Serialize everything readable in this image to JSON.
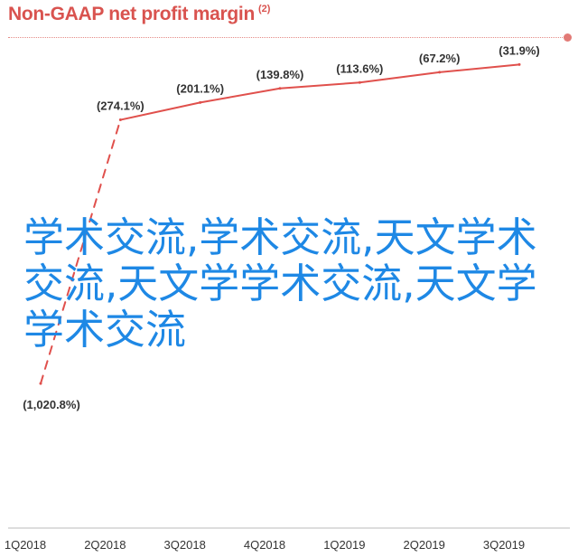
{
  "chart_data": {
    "type": "line",
    "title": "Non-GAAP net profit margin",
    "title_note": "(2)",
    "categories": [
      "1Q2018",
      "2Q2018",
      "3Q2018",
      "4Q2018",
      "1Q2019",
      "2Q2019",
      "3Q2019"
    ],
    "series": [
      {
        "values": [
          -1020.8,
          -274.1,
          -201.1,
          -139.8,
          -113.6,
          -67.2,
          -31.9
        ],
        "labels": [
          "(1,020.8%)",
          "(274.1%)",
          "(201.1%)",
          "(139.8%)",
          "(113.6%)",
          "(67.2%)",
          "(31.9%)"
        ],
        "dashed_segments": [
          0
        ],
        "color": "#e0504c"
      }
    ],
    "ylim": [
      -1100,
      0
    ],
    "grid": false,
    "xlabel": "",
    "ylabel": ""
  },
  "watermark": {
    "text": "学术交流,学术交流,天文学术交流,天文学学术交流,天文学学术交流"
  }
}
